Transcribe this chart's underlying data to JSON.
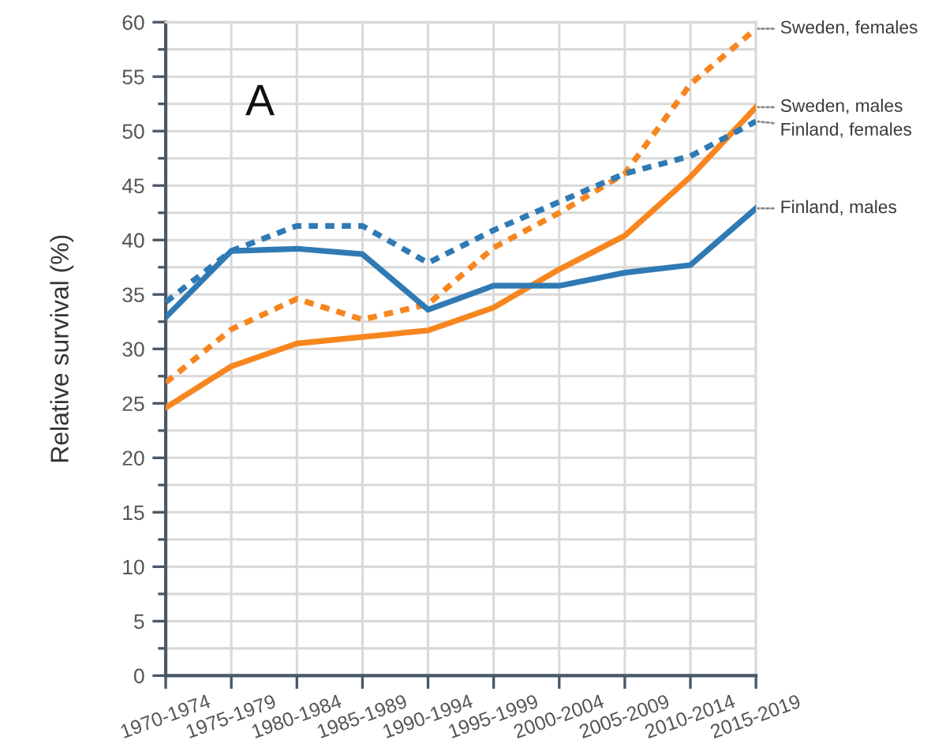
{
  "chart_data": {
    "type": "line",
    "ylabel": "Relative survival (%)",
    "annotations": [
      "A"
    ],
    "categories": [
      "1970-1974",
      "1975-1979",
      "1980-1984",
      "1985-1989",
      "1990-1994",
      "1995-1999",
      "2000-2004",
      "2005-2009",
      "2010-2014",
      "2015-2019"
    ],
    "series": [
      {
        "name": "Sweden, females",
        "color": "#f7861f",
        "line_style": "dashed",
        "values": [
          26.9,
          31.8,
          34.6,
          32.7,
          34.1,
          39.3,
          42.5,
          46.1,
          54.3,
          59.4
        ]
      },
      {
        "name": "Sweden, males",
        "color": "#f7861f",
        "line_style": "solid",
        "values": [
          24.6,
          28.4,
          30.5,
          31.1,
          31.7,
          33.8,
          37.3,
          40.4,
          45.8,
          52.2
        ]
      },
      {
        "name": "Finland, females",
        "color": "#2f7ab4",
        "line_style": "dashed",
        "values": [
          34.3,
          39.0,
          41.3,
          41.3,
          37.9,
          40.9,
          43.5,
          46.1,
          47.7,
          50.9
        ]
      },
      {
        "name": "Finland, males",
        "color": "#2f7ab4",
        "line_style": "solid",
        "values": [
          32.9,
          39.0,
          39.2,
          38.7,
          33.6,
          35.8,
          35.8,
          37.0,
          37.7,
          42.9
        ]
      }
    ],
    "ylim": [
      0,
      60
    ],
    "yticks": [
      0,
      {
        "value": 2.5,
        "label": null
      },
      5,
      {
        "value": 7.5,
        "label": null
      },
      10,
      {
        "value": 12.5,
        "label": null
      },
      15,
      {
        "value": 17.5,
        "label": null
      },
      20,
      {
        "value": 22.5,
        "label": null
      },
      25,
      {
        "value": 27.5,
        "label": null
      },
      30,
      {
        "value": 32.5,
        "label": null
      },
      35,
      {
        "value": 37.5,
        "label": null
      },
      40,
      {
        "value": 42.5,
        "label": null
      },
      45,
      {
        "value": 47.5,
        "label": null
      },
      50,
      {
        "value": 52.5,
        "label": null
      },
      55,
      {
        "value": 57.5,
        "label": null
      },
      60
    ],
    "grid": true
  }
}
